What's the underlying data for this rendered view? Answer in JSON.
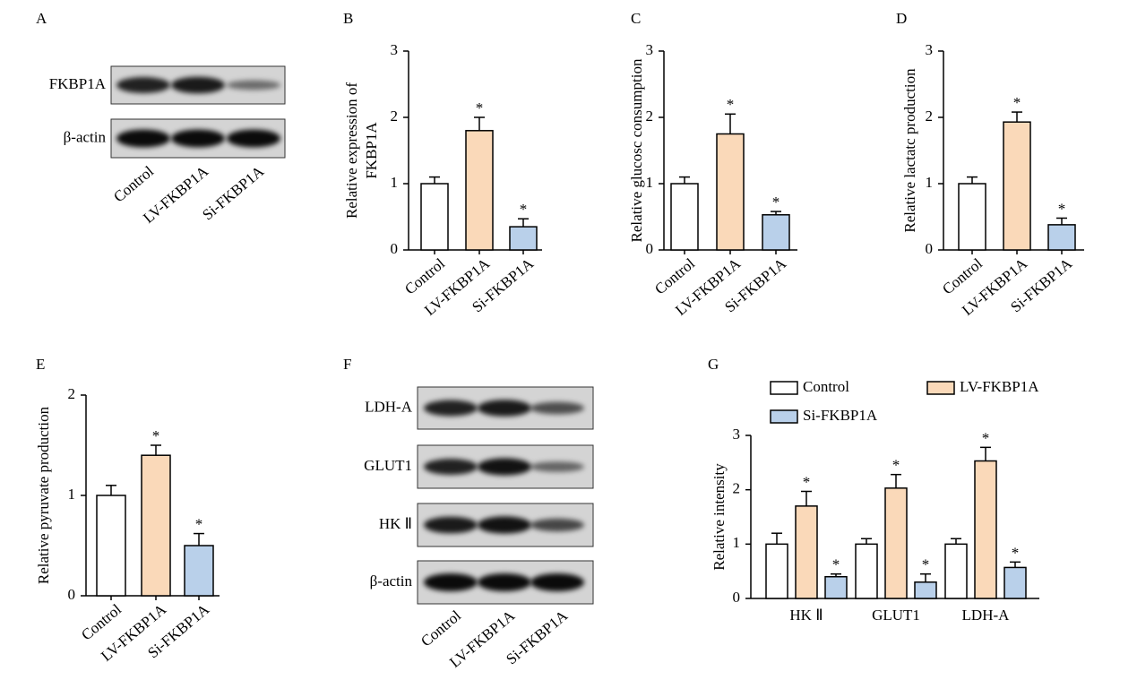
{
  "chart_data": [
    {
      "type": "bar",
      "panel": "B",
      "ylabel": [
        "Relative expression of",
        "FKBP1A"
      ],
      "categories": [
        "Control",
        "LV-FKBP1A",
        "Si-FKBP1A"
      ],
      "values": [
        1.0,
        1.8,
        0.35
      ],
      "errors": [
        0.1,
        0.2,
        0.12
      ],
      "colors": [
        "#ffffff",
        "#fad9b9",
        "#b9d0ea"
      ],
      "significance": [
        null,
        "*",
        "*"
      ],
      "ylim": [
        0,
        3
      ],
      "yticks": [
        0,
        1,
        2,
        3
      ]
    },
    {
      "type": "bar",
      "panel": "C",
      "ylabel": "Relative glucosc consumption",
      "categories": [
        "Control",
        "LV-FKBP1A",
        "Si-FKBP1A"
      ],
      "values": [
        1.0,
        1.75,
        0.53
      ],
      "errors": [
        0.1,
        0.3,
        0.05
      ],
      "colors": [
        "#ffffff",
        "#fad9b9",
        "#b9d0ea"
      ],
      "significance": [
        null,
        "*",
        "*"
      ],
      "ylim": [
        0,
        3
      ],
      "yticks": [
        0,
        1,
        2,
        3
      ]
    },
    {
      "type": "bar",
      "panel": "D",
      "ylabel": "Relative lactatc production",
      "categories": [
        "Control",
        "LV-FKBP1A",
        "Si-FKBP1A"
      ],
      "values": [
        1.0,
        1.93,
        0.38
      ],
      "errors": [
        0.1,
        0.15,
        0.1
      ],
      "colors": [
        "#ffffff",
        "#fad9b9",
        "#b9d0ea"
      ],
      "significance": [
        null,
        "*",
        "*"
      ],
      "ylim": [
        0,
        3
      ],
      "yticks": [
        0,
        1,
        2,
        3
      ]
    },
    {
      "type": "bar",
      "panel": "E",
      "ylabel": "Relative pyruvate production",
      "categories": [
        "Control",
        "LV-FKBP1A",
        "Si-FKBP1A"
      ],
      "values": [
        1.0,
        1.4,
        0.5
      ],
      "errors": [
        0.1,
        0.1,
        0.12
      ],
      "colors": [
        "#ffffff",
        "#fad9b9",
        "#b9d0ea"
      ],
      "significance": [
        null,
        "*",
        "*"
      ],
      "ylim": [
        0,
        2
      ],
      "yticks": [
        0,
        1,
        2
      ]
    },
    {
      "type": "grouped_bar",
      "panel": "G",
      "ylabel": "Relative intensity",
      "categories": [
        "HK Ⅱ",
        "GLUT1",
        "LDH-A"
      ],
      "series": [
        {
          "name": "Control",
          "color": "#ffffff",
          "values": [
            1.0,
            1.0,
            1.0
          ],
          "errors": [
            0.2,
            0.1,
            0.1
          ],
          "significance": [
            null,
            null,
            null
          ]
        },
        {
          "name": "LV-FKBP1A",
          "color": "#fad9b9",
          "values": [
            1.7,
            2.03,
            2.53
          ],
          "errors": [
            0.27,
            0.25,
            0.25
          ],
          "significance": [
            "*",
            "*",
            "*"
          ]
        },
        {
          "name": "Si-FKBP1A",
          "color": "#b9d0ea",
          "values": [
            0.4,
            0.3,
            0.57
          ],
          "errors": [
            0.05,
            0.15,
            0.1
          ],
          "significance": [
            "*",
            "*",
            "*"
          ]
        }
      ],
      "ylim": [
        0,
        3
      ],
      "yticks": [
        0,
        1,
        2,
        3
      ]
    }
  ],
  "blots": [
    {
      "panel": "A",
      "proteins": [
        "FKBP1A",
        "β-actin"
      ],
      "lanes": [
        "Control",
        "LV-FKBP1A",
        "Si-FKBP1A"
      ]
    },
    {
      "panel": "F",
      "proteins": [
        "LDH-A",
        "GLUT1",
        "HK Ⅱ",
        "β-actin"
      ],
      "lanes": [
        "Control",
        "LV-FKBP1A",
        "Si-FKBP1A"
      ]
    }
  ]
}
